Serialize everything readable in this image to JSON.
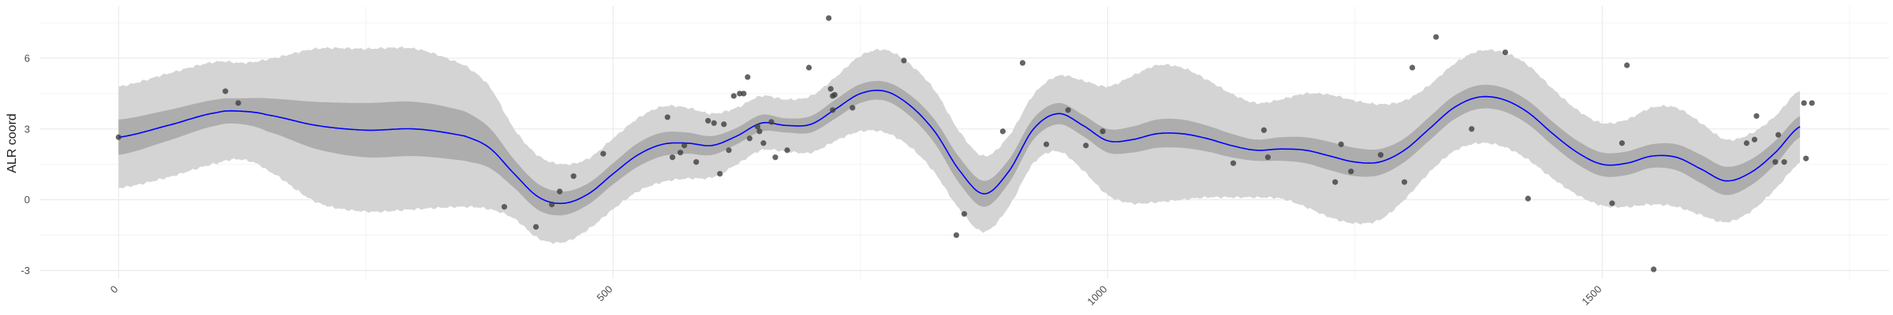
{
  "chart_data": {
    "type": "line",
    "title": "",
    "xlabel": "",
    "ylabel": "ALR coord",
    "xlim": [
      -80,
      1790
    ],
    "ylim": [
      -3.35,
      8.2
    ],
    "x_ticks": [
      0,
      500,
      1000,
      1500
    ],
    "x_tick_labels": [
      "0",
      "500",
      "1000",
      "1500"
    ],
    "y_ticks": [
      -3,
      0,
      3,
      6
    ],
    "y_tick_labels": [
      "-3",
      "0",
      "3",
      "6"
    ],
    "grid": true,
    "legend": "none",
    "colors": {
      "mean_line": "#0000ff",
      "inner_band": "#adadad",
      "outer_band": "#d4d4d4",
      "points": "#3d3d3d",
      "grid": "#ebebeb"
    },
    "series": [
      {
        "kind": "mean",
        "x": [
          0,
          50,
          100,
          125,
          150,
          200,
          250,
          300,
          350,
          375,
          400,
          425,
          450,
          475,
          500,
          525,
          550,
          575,
          600,
          625,
          650,
          675,
          700,
          725,
          750,
          775,
          800,
          825,
          850,
          875,
          900,
          925,
          950,
          975,
          1000,
          1025,
          1050,
          1075,
          1100,
          1125,
          1150,
          1175,
          1200,
          1225,
          1250,
          1275,
          1300,
          1325,
          1350,
          1375,
          1400,
          1425,
          1450,
          1475,
          1500,
          1525,
          1550,
          1575,
          1600,
          1625,
          1650,
          1675,
          1700
        ],
        "y": [
          2.65,
          3.15,
          3.7,
          3.75,
          3.6,
          3.15,
          2.95,
          3.0,
          2.7,
          2.2,
          1.1,
          0.1,
          -0.15,
          0.25,
          1.1,
          1.9,
          2.35,
          2.4,
          2.3,
          2.7,
          3.25,
          3.15,
          3.2,
          3.85,
          4.5,
          4.6,
          4.0,
          2.9,
          1.25,
          0.25,
          1.2,
          3.0,
          3.65,
          3.15,
          2.5,
          2.55,
          2.8,
          2.8,
          2.6,
          2.3,
          2.1,
          2.15,
          2.1,
          1.85,
          1.6,
          1.6,
          2.1,
          3.0,
          3.9,
          4.35,
          4.25,
          3.7,
          2.8,
          2.0,
          1.5,
          1.55,
          1.85,
          1.8,
          1.3,
          0.8,
          1.15,
          2.0,
          3.1
        ]
      },
      {
        "kind": "inner_band_half_width",
        "x": [
          0,
          50,
          100,
          125,
          150,
          200,
          250,
          300,
          350,
          375,
          400,
          425,
          450,
          475,
          500,
          525,
          550,
          575,
          600,
          625,
          650,
          675,
          700,
          725,
          750,
          775,
          800,
          825,
          850,
          875,
          900,
          925,
          950,
          975,
          1000,
          1025,
          1050,
          1075,
          1100,
          1125,
          1150,
          1175,
          1200,
          1225,
          1250,
          1275,
          1300,
          1325,
          1350,
          1375,
          1400,
          1425,
          1450,
          1475,
          1500,
          1525,
          1550,
          1575,
          1600,
          1625,
          1650,
          1675,
          1700
        ],
        "y": [
          0.75,
          0.65,
          0.55,
          0.55,
          0.7,
          1.0,
          1.15,
          1.15,
          1.05,
          0.85,
          0.6,
          0.55,
          0.5,
          0.45,
          0.45,
          0.5,
          0.5,
          0.45,
          0.4,
          0.35,
          0.35,
          0.3,
          0.35,
          0.4,
          0.4,
          0.4,
          0.45,
          0.5,
          0.55,
          0.55,
          0.5,
          0.45,
          0.45,
          0.45,
          0.5,
          0.55,
          0.6,
          0.6,
          0.55,
          0.5,
          0.45,
          0.5,
          0.55,
          0.6,
          0.6,
          0.55,
          0.5,
          0.5,
          0.5,
          0.5,
          0.5,
          0.5,
          0.5,
          0.5,
          0.5,
          0.5,
          0.5,
          0.55,
          0.6,
          0.6,
          0.55,
          0.5,
          0.45
        ]
      },
      {
        "kind": "outer_band_half_width",
        "x": [
          0,
          50,
          100,
          125,
          150,
          200,
          250,
          300,
          350,
          375,
          400,
          425,
          450,
          475,
          500,
          525,
          550,
          575,
          600,
          625,
          650,
          675,
          700,
          725,
          750,
          775,
          800,
          825,
          850,
          875,
          900,
          925,
          950,
          975,
          1000,
          1025,
          1050,
          1075,
          1100,
          1125,
          1150,
          1175,
          1200,
          1225,
          1250,
          1275,
          1300,
          1325,
          1350,
          1375,
          1400,
          1425,
          1450,
          1475,
          1500,
          1525,
          1550,
          1575,
          1600,
          1625,
          1650,
          1675,
          1700
        ],
        "y": [
          2.15,
          2.2,
          2.15,
          2.05,
          2.35,
          3.25,
          3.45,
          3.4,
          3.0,
          2.6,
          1.9,
          1.75,
          1.65,
          1.5,
          1.5,
          1.55,
          1.6,
          1.5,
          1.35,
          1.2,
          1.15,
          1.1,
          1.2,
          1.35,
          1.6,
          1.75,
          1.75,
          1.75,
          1.65,
          1.6,
          1.5,
          1.45,
          1.6,
          1.9,
          2.3,
          2.7,
          2.9,
          2.8,
          2.5,
          2.2,
          2.0,
          2.1,
          2.4,
          2.6,
          2.6,
          2.45,
          2.1,
          1.85,
          1.85,
          1.95,
          2.0,
          2.0,
          1.9,
          1.8,
          1.75,
          1.85,
          2.05,
          2.1,
          1.95,
          1.75,
          1.65,
          1.55,
          1.55
        ]
      }
    ],
    "points": [
      {
        "x": 0,
        "y": 2.65
      },
      {
        "x": 108,
        "y": 4.6
      },
      {
        "x": 121,
        "y": 4.1
      },
      {
        "x": 390,
        "y": -0.3
      },
      {
        "x": 422,
        "y": -1.15
      },
      {
        "x": 438,
        "y": -0.2
      },
      {
        "x": 446,
        "y": 0.35
      },
      {
        "x": 460,
        "y": 1.0
      },
      {
        "x": 490,
        "y": 1.95
      },
      {
        "x": 555,
        "y": 3.5
      },
      {
        "x": 560,
        "y": 1.8
      },
      {
        "x": 568,
        "y": 2.0
      },
      {
        "x": 572,
        "y": 2.3
      },
      {
        "x": 584,
        "y": 1.6
      },
      {
        "x": 596,
        "y": 3.35
      },
      {
        "x": 602,
        "y": 3.25
      },
      {
        "x": 608,
        "y": 1.1
      },
      {
        "x": 612,
        "y": 3.2
      },
      {
        "x": 617,
        "y": 2.1
      },
      {
        "x": 622,
        "y": 4.4
      },
      {
        "x": 628,
        "y": 4.5
      },
      {
        "x": 632,
        "y": 4.5
      },
      {
        "x": 636,
        "y": 5.2
      },
      {
        "x": 638,
        "y": 2.6
      },
      {
        "x": 646,
        "y": 3.1
      },
      {
        "x": 648,
        "y": 2.9
      },
      {
        "x": 652,
        "y": 2.4
      },
      {
        "x": 660,
        "y": 3.3
      },
      {
        "x": 664,
        "y": 1.8
      },
      {
        "x": 676,
        "y": 2.1
      },
      {
        "x": 698,
        "y": 5.6
      },
      {
        "x": 718,
        "y": 7.7
      },
      {
        "x": 720,
        "y": 4.7
      },
      {
        "x": 722,
        "y": 4.4
      },
      {
        "x": 722,
        "y": 3.8
      },
      {
        "x": 724,
        "y": 4.45
      },
      {
        "x": 742,
        "y": 3.9
      },
      {
        "x": 794,
        "y": 5.9
      },
      {
        "x": 847,
        "y": -1.5
      },
      {
        "x": 855,
        "y": -0.6
      },
      {
        "x": 894,
        "y": 2.9
      },
      {
        "x": 914,
        "y": 5.8
      },
      {
        "x": 938,
        "y": 2.35
      },
      {
        "x": 960,
        "y": 3.8
      },
      {
        "x": 978,
        "y": 2.3
      },
      {
        "x": 995,
        "y": 2.9
      },
      {
        "x": 1127,
        "y": 1.55
      },
      {
        "x": 1158,
        "y": 2.95
      },
      {
        "x": 1162,
        "y": 1.8
      },
      {
        "x": 1230,
        "y": 0.75
      },
      {
        "x": 1236,
        "y": 2.35
      },
      {
        "x": 1246,
        "y": 1.2
      },
      {
        "x": 1276,
        "y": 1.9
      },
      {
        "x": 1300,
        "y": 0.75
      },
      {
        "x": 1308,
        "y": 5.6
      },
      {
        "x": 1332,
        "y": 6.9
      },
      {
        "x": 1368,
        "y": 3.0
      },
      {
        "x": 1402,
        "y": 6.25
      },
      {
        "x": 1425,
        "y": 0.05
      },
      {
        "x": 1510,
        "y": -0.15
      },
      {
        "x": 1520,
        "y": 2.4
      },
      {
        "x": 1525,
        "y": 5.7
      },
      {
        "x": 1552,
        "y": -2.95
      },
      {
        "x": 1646,
        "y": 2.4
      },
      {
        "x": 1654,
        "y": 2.55
      },
      {
        "x": 1656,
        "y": 3.55
      },
      {
        "x": 1675,
        "y": 1.6
      },
      {
        "x": 1678,
        "y": 2.75
      },
      {
        "x": 1684,
        "y": 1.6
      },
      {
        "x": 1704,
        "y": 4.1
      },
      {
        "x": 1706,
        "y": 1.75
      },
      {
        "x": 1712,
        "y": 4.1
      }
    ]
  }
}
